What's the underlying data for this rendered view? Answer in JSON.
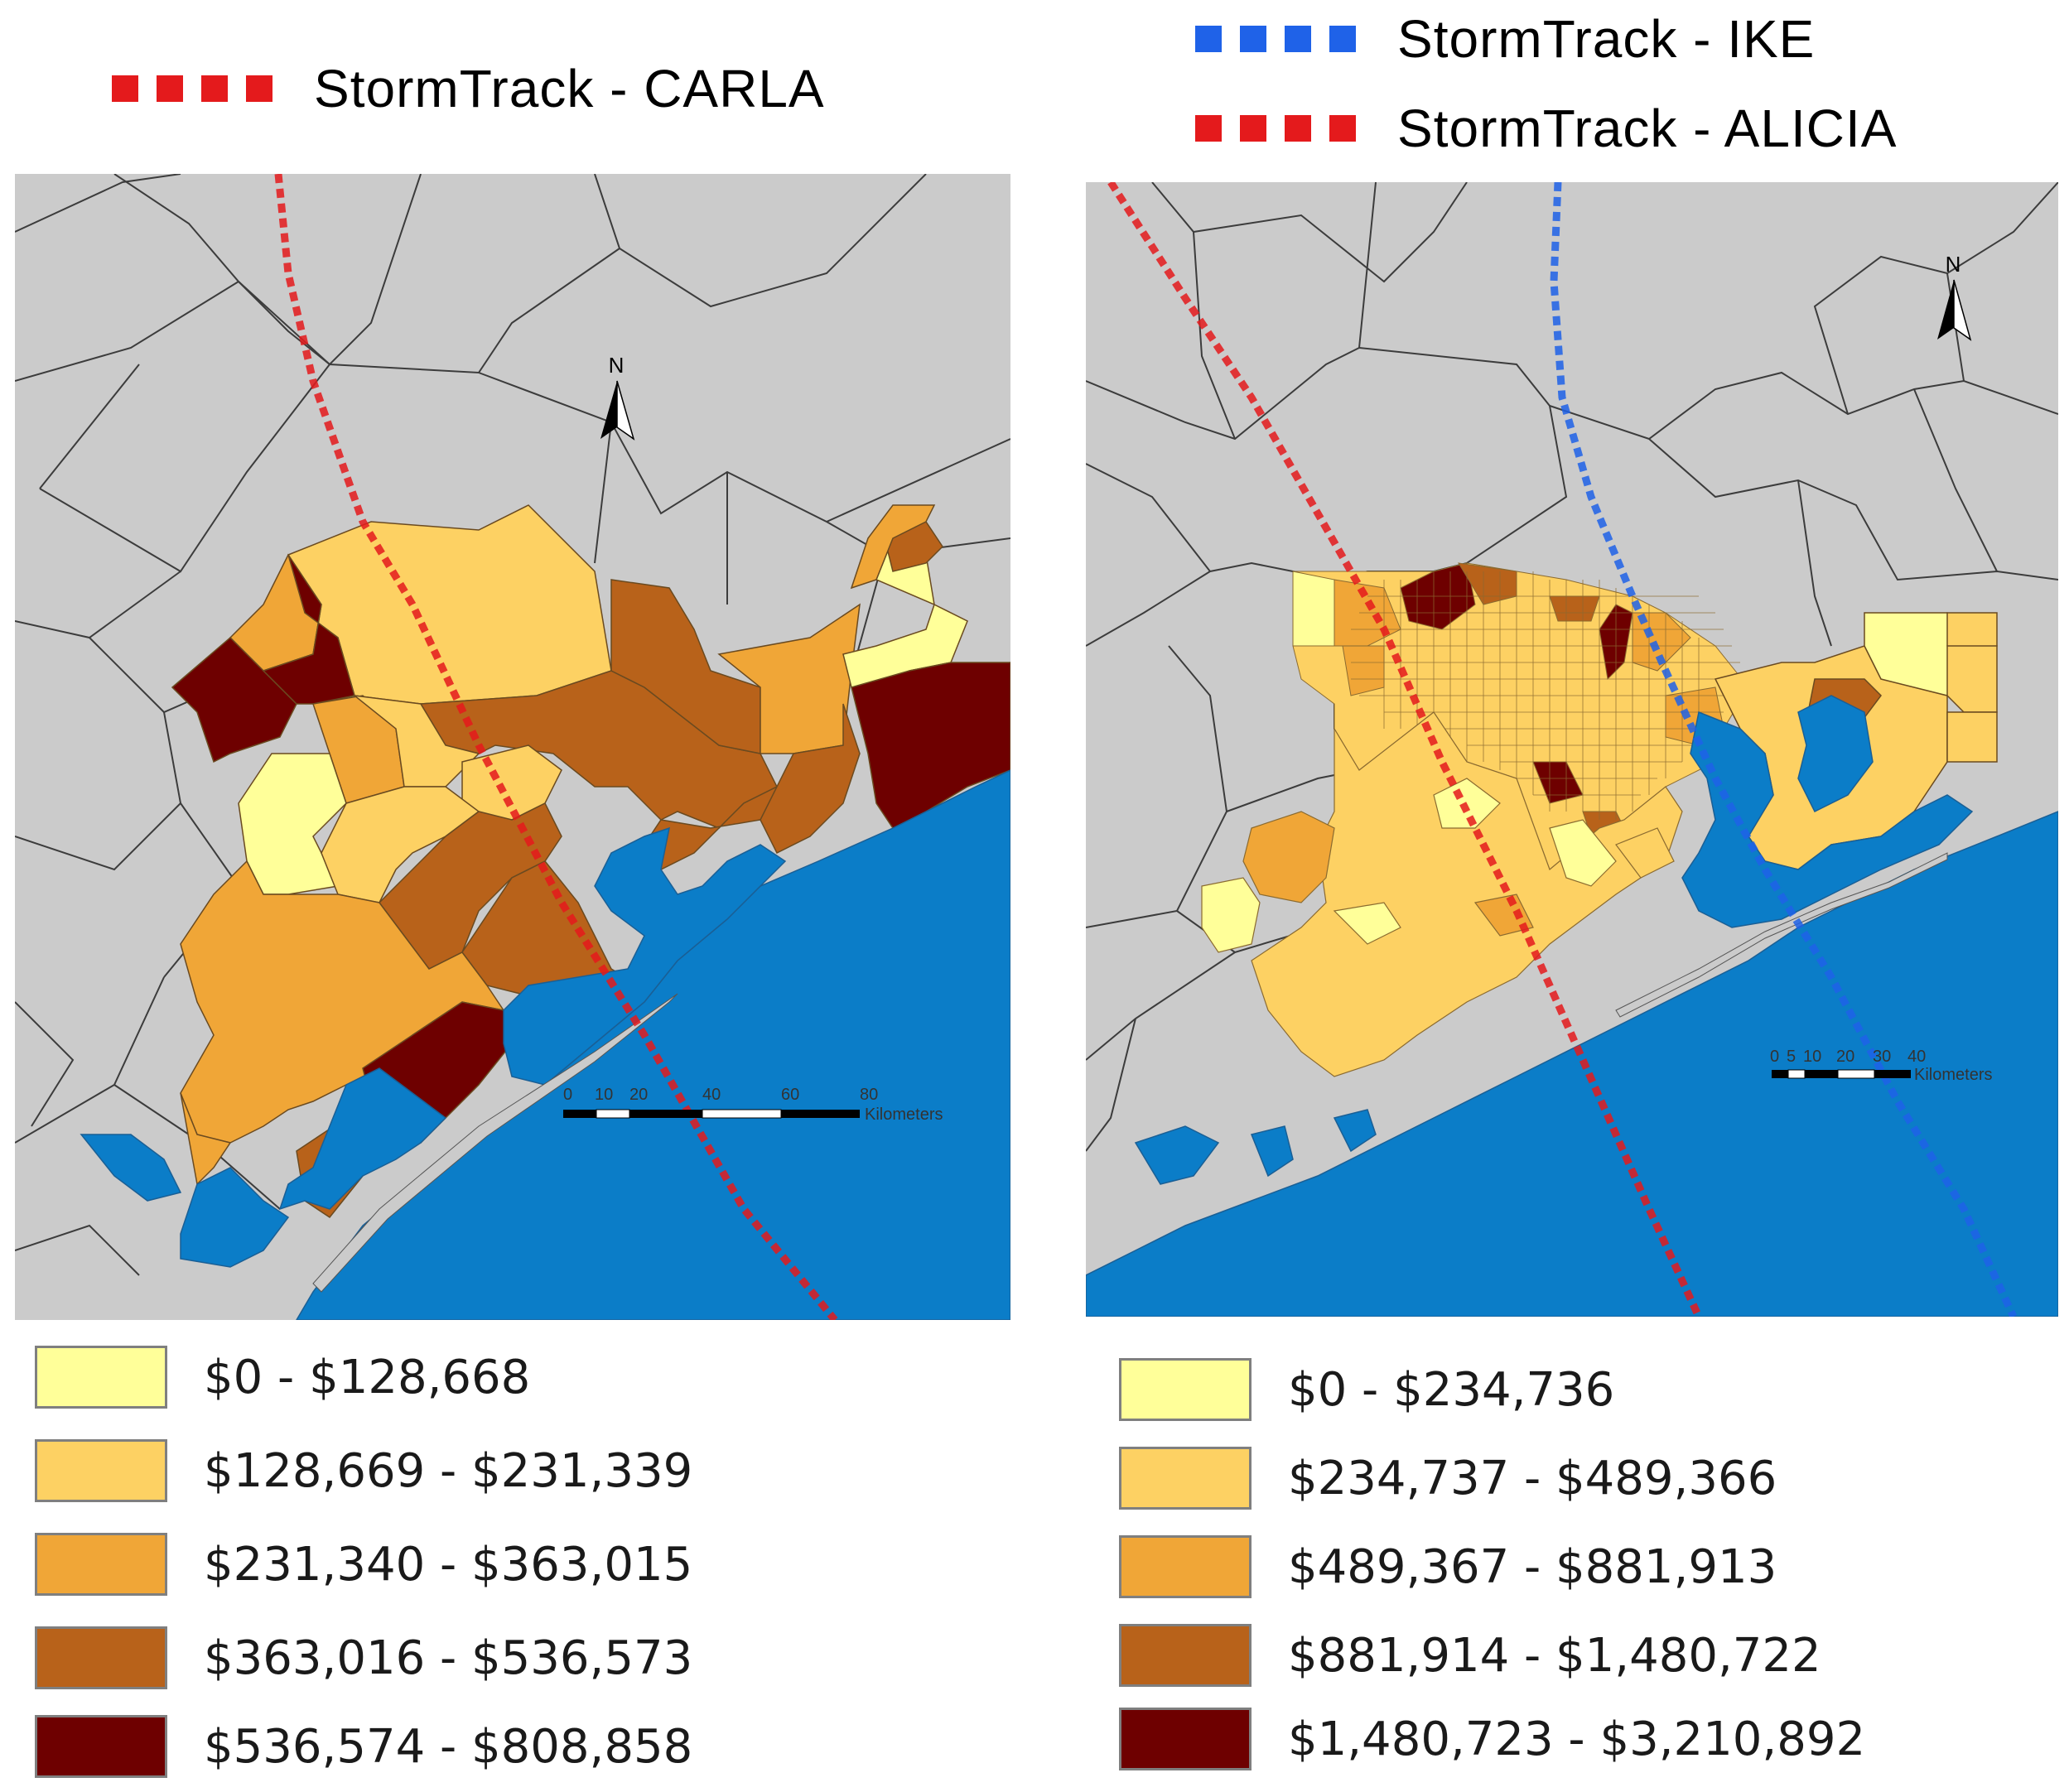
{
  "storm_tracks": {
    "left": [
      {
        "label": "StormTrack - CARLA",
        "color": "#e41a1c"
      }
    ],
    "right": [
      {
        "label": "StormTrack - IKE",
        "color": "#1f62e8"
      },
      {
        "label": "StormTrack - ALICIA",
        "color": "#e41a1c"
      }
    ]
  },
  "maps": {
    "left": {
      "storm": "CARLA",
      "north_label": "N",
      "scale_ticks": [
        "0",
        "10",
        "20",
        "40",
        "60",
        "80"
      ],
      "scale_unit": "Kilometers"
    },
    "right": {
      "storms": [
        "IKE",
        "ALICIA"
      ],
      "north_label": "N",
      "scale_ticks": [
        "0",
        "5",
        "10",
        "20",
        "30",
        "40"
      ],
      "scale_unit": "Kilometers"
    }
  },
  "colors": {
    "land": "#cbcbcb",
    "water": "#0b7dc8",
    "county_border": "#3c3c3c",
    "class_1": "#ffff99",
    "class_2": "#fdd163",
    "class_3": "#f0a637",
    "class_4": "#b8621a",
    "class_5": "#6e0000"
  },
  "legends": {
    "left": [
      {
        "label": "$0 - $128,668",
        "color": "#ffff99"
      },
      {
        "label": "$128,669 - $231,339",
        "color": "#fdd163"
      },
      {
        "label": "$231,340 - $363,015",
        "color": "#f0a637"
      },
      {
        "label": "$363,016 - $536,573",
        "color": "#b8621a"
      },
      {
        "label": "$536,574 - $808,858",
        "color": "#6e0000"
      }
    ],
    "right": [
      {
        "label": "$0 - $234,736",
        "color": "#ffff99"
      },
      {
        "label": "$234,737 - $489,366",
        "color": "#fdd163"
      },
      {
        "label": "$489,367 - $881,913",
        "color": "#f0a637"
      },
      {
        "label": "$881,914 - $1,480,722",
        "color": "#b8621a"
      },
      {
        "label": "$1,480,723 - $3,210,892",
        "color": "#6e0000"
      }
    ]
  }
}
